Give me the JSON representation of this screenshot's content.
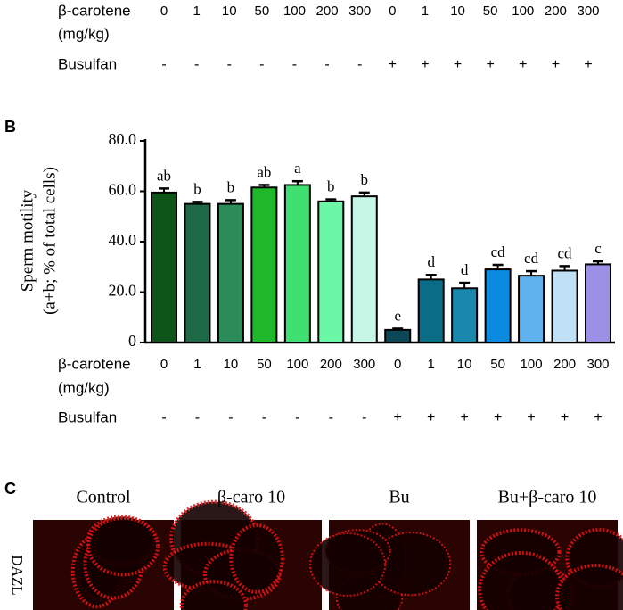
{
  "panel_b_label": "B",
  "chart_data": {
    "type": "bar",
    "ylabel": [
      "Sperm motility",
      "(a+b; % of total cells)"
    ],
    "x_row_label": "β-carotene",
    "x_row_unit": "(mg/kg)",
    "busulfan_label": "Busulfan",
    "categories": [
      "0",
      "1",
      "10",
      "50",
      "100",
      "200",
      "300",
      "0",
      "1",
      "10",
      "50",
      "100",
      "200",
      "300"
    ],
    "busulfan": [
      "-",
      "-",
      "-",
      "-",
      "-",
      "-",
      "-",
      "+",
      "+",
      "+",
      "+",
      "+",
      "+",
      "+"
    ],
    "values": [
      59.5,
      55,
      55,
      61.5,
      62.5,
      56,
      58,
      5,
      25,
      21.5,
      29,
      26.5,
      28.5,
      31
    ],
    "errors": [
      1.6,
      0.8,
      1.5,
      1.0,
      1.5,
      0.8,
      1.5,
      0.5,
      1.8,
      2.2,
      1.8,
      1.8,
      1.8,
      1.2
    ],
    "significance": [
      "ab",
      "b",
      "b",
      "ab",
      "a",
      "b",
      "b",
      "e",
      "d",
      "d",
      "cd",
      "cd",
      "cd",
      "c"
    ],
    "colors": [
      "#0c5418",
      "#1e6a46",
      "#2b8c5a",
      "#1fb82a",
      "#3fe070",
      "#6cf7a6",
      "#c6f7e6",
      "#0c4758",
      "#0b6c88",
      "#1889ad",
      "#0a8be0",
      "#5fb2ee",
      "#c0e0f6",
      "#9a90e6"
    ],
    "ylim": [
      0,
      80
    ],
    "yticks": [
      0,
      {
        "value": 20,
        "label": "20.0"
      },
      {
        "value": 40,
        "label": "40.0"
      },
      {
        "value": 60,
        "label": "60.0"
      },
      {
        "value": 80,
        "label": "80.0"
      }
    ]
  },
  "panel_c": {
    "label": "C",
    "row_label": "DAZL",
    "columns": [
      "Control",
      "β-caro 10",
      "Bu",
      "Bu+β-caro 10"
    ]
  }
}
